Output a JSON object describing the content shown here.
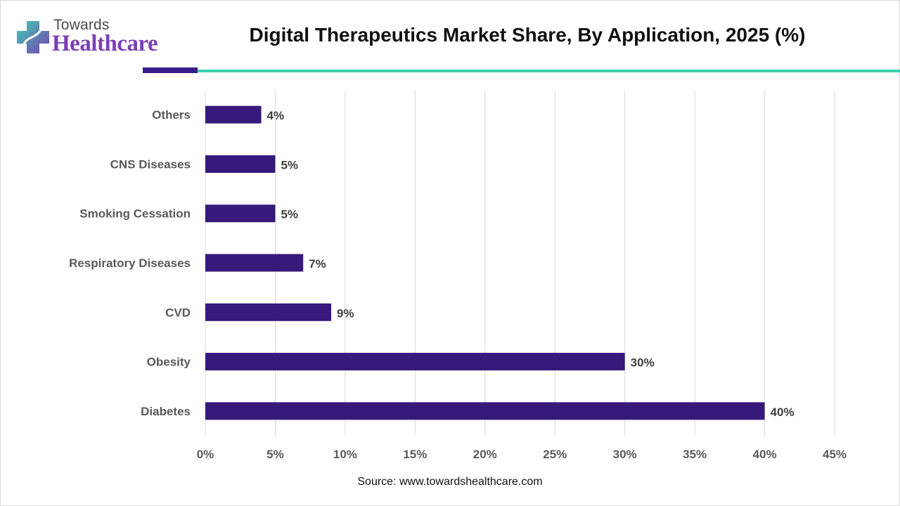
{
  "brand": {
    "top": "Towards",
    "main": "Healthcare",
    "colors": {
      "purple": "#7b3fb5",
      "teal": "#3ccfb0",
      "navy": "#3a1d8c"
    }
  },
  "source": "Source: www.towardshealthcare.com",
  "chart_data": {
    "type": "bar",
    "orientation": "horizontal",
    "title": "Digital Therapeutics Market Share, By Application, 2025 (%)",
    "xlabel": "",
    "ylabel": "",
    "categories": [
      "Others",
      "CNS Diseases",
      "Smoking Cessation",
      "Respiratory Diseases",
      "CVD",
      "Obesity",
      "Diabetes"
    ],
    "values": [
      4,
      5,
      5,
      7,
      9,
      30,
      40
    ],
    "value_labels": [
      "4%",
      "5%",
      "5%",
      "7%",
      "9%",
      "30%",
      "40%"
    ],
    "xlim": [
      0,
      45
    ],
    "xticks": [
      0,
      5,
      10,
      15,
      20,
      25,
      30,
      35,
      40,
      45
    ],
    "xtick_labels": [
      "0%",
      "5%",
      "10%",
      "15%",
      "20%",
      "25%",
      "30%",
      "35%",
      "40%",
      "45%"
    ],
    "grid": true,
    "bar_color": "#36197a"
  }
}
